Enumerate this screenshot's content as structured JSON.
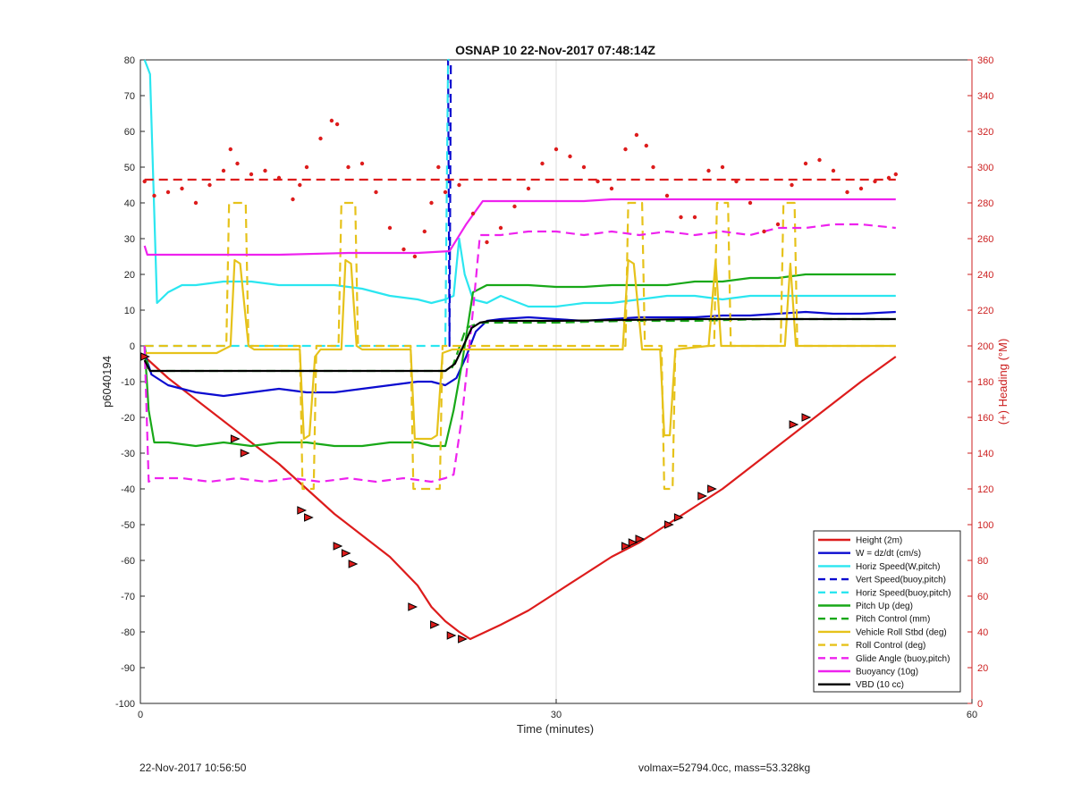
{
  "figure": {
    "footer_left": "22-Nov-2017 10:56:50",
    "footer_right": "volmax=52794.0cc, mass=53.328kg"
  },
  "chart_data": {
    "type": "line",
    "title": "OSNAP 10 22-Nov-2017 07:48:14Z",
    "xlabel": "Time (minutes)",
    "ylabel": "p6040194",
    "y2label": "(+) Heading (°M)",
    "xlim": [
      0,
      60
    ],
    "ylim": [
      -100,
      80
    ],
    "y2lim": [
      0,
      360
    ],
    "xticks": [
      0,
      30,
      60
    ],
    "yticks": [
      -100,
      -90,
      -80,
      -70,
      -60,
      -50,
      -40,
      -30,
      -20,
      -10,
      0,
      10,
      20,
      30,
      40,
      50,
      60,
      70,
      80
    ],
    "y2ticks": [
      0,
      20,
      40,
      60,
      80,
      100,
      120,
      140,
      160,
      180,
      200,
      220,
      240,
      260,
      280,
      300,
      320,
      340,
      360
    ],
    "grid": true,
    "legend_position": "bottom-right",
    "colors": {
      "red": "#dd1c1c",
      "blue": "#0b0bd0",
      "cyan": "#2be6f0",
      "green": "#18a818",
      "yellow": "#e6c21a",
      "magenta": "#ee22ee",
      "black": "#000000",
      "right_axis": "#cc1f1f"
    },
    "series": [
      {
        "name": "Height (2m)",
        "color": "red",
        "dash": false,
        "x": [
          0.3,
          2,
          4,
          6,
          8,
          10,
          12,
          14,
          16,
          18,
          20,
          21,
          22,
          23,
          23.8,
          26,
          28,
          30,
          32,
          34,
          36,
          38,
          40,
          42,
          44,
          46,
          48,
          50,
          52,
          54.5
        ],
        "y": [
          -3,
          -9,
          -15,
          -21,
          -27,
          -33,
          -40,
          -47,
          -53,
          -59,
          -67,
          -73,
          -77,
          -80,
          -82,
          -78,
          -74,
          -69,
          -64,
          -59,
          -55,
          -50,
          -45,
          -40,
          -34,
          -28,
          -22,
          -16,
          -10,
          -3
        ]
      },
      {
        "name": "W = dz/dt (cm/s)",
        "color": "blue",
        "dash": false,
        "x": [
          0.3,
          0.8,
          2,
          4,
          6,
          8,
          10,
          12,
          14,
          16,
          18,
          20,
          21,
          22,
          22.8,
          23.5,
          24.2,
          25,
          26,
          28,
          30,
          32,
          34,
          36,
          38,
          40,
          42,
          44,
          46,
          48,
          50,
          52,
          54.5
        ],
        "y": [
          -2,
          -8,
          -11,
          -13,
          -14,
          -13,
          -12,
          -13,
          -13,
          -12,
          -11,
          -10,
          -10,
          -11,
          -9,
          -3,
          4,
          7,
          7.5,
          8,
          7.5,
          7,
          7.5,
          8,
          8,
          8,
          8.5,
          8.5,
          9,
          9.5,
          9,
          9,
          9.5
        ]
      },
      {
        "name": "Horiz Speed(W,pitch)",
        "color": "cyan",
        "dash": false,
        "x": [
          0.3,
          0.5,
          0.7,
          1.2,
          2,
          3,
          4,
          6,
          8,
          10,
          12,
          14,
          16,
          18,
          20,
          21,
          22,
          22.6,
          23,
          23.4,
          24,
          25,
          26,
          28,
          30,
          32,
          34,
          36,
          38,
          40,
          42,
          44,
          46,
          48,
          50,
          52,
          54.5
        ],
        "y": [
          80,
          78,
          76,
          12,
          15,
          17,
          17,
          18,
          18,
          17,
          17,
          17,
          16,
          14,
          13,
          12,
          13,
          14,
          30,
          20,
          13,
          12,
          14,
          11,
          11,
          12,
          12,
          13,
          14,
          14,
          13,
          14,
          14,
          14,
          14,
          14,
          14
        ]
      },
      {
        "name": "Vert Speed(buoy,pitch)",
        "color": "blue",
        "dash": true,
        "x": [
          22.2,
          22.3,
          22.4
        ],
        "y": [
          80,
          0,
          80
        ]
      },
      {
        "name": "Horiz Speed(buoy,pitch)",
        "color": "cyan",
        "dash": true,
        "x": [
          0.3,
          8,
          14,
          22,
          22.2,
          22.3
        ],
        "y": [
          0,
          0,
          0,
          0,
          80,
          80
        ]
      },
      {
        "name": "Pitch Up (deg)",
        "color": "green",
        "dash": false,
        "x": [
          0.3,
          0.6,
          1,
          2,
          4,
          6,
          8,
          10,
          12,
          14,
          16,
          18,
          20,
          21,
          22,
          22.6,
          23.2,
          24,
          25,
          26,
          28,
          30,
          32,
          34,
          36,
          38,
          40,
          42,
          44,
          46,
          48,
          50,
          52,
          54.5
        ],
        "y": [
          0,
          -18,
          -27,
          -27,
          -28,
          -27,
          -28,
          -27,
          -27,
          -28,
          -28,
          -27,
          -27,
          -28,
          -28,
          -18,
          -5,
          15,
          17,
          17,
          17,
          16.5,
          16.5,
          17,
          17,
          17,
          18,
          18,
          19,
          19,
          20,
          20,
          20,
          20
        ]
      },
      {
        "name": "Pitch Control (mm)",
        "color": "green",
        "dash": true,
        "x": [
          0.3,
          0.6,
          5,
          10,
          15,
          20,
          22,
          22.5,
          23.5,
          24.5,
          30,
          35,
          40,
          45,
          50,
          54.5
        ],
        "y": [
          0,
          -7,
          -7,
          -7,
          -7,
          -7,
          -7,
          -6,
          5,
          6.5,
          6.5,
          7,
          7,
          7.5,
          7.5,
          7.5
        ]
      },
      {
        "name": "Vehicle Roll Stbd (deg)",
        "color": "yellow",
        "dash": false,
        "x": [
          0.3,
          5.5,
          6.5,
          6.8,
          7.2,
          7.8,
          8.2,
          11.5,
          11.8,
          12.2,
          12.6,
          13,
          14.5,
          14.8,
          15.2,
          15.6,
          16,
          19.5,
          19.8,
          21,
          21.4,
          21.8,
          22.5,
          23.5,
          24,
          25,
          34.8,
          35.2,
          35.6,
          36.2,
          36.6,
          37.5,
          37.8,
          38.2,
          38.6,
          41,
          41.5,
          41.9,
          46.5,
          46.9,
          47.3,
          54.5
        ],
        "y": [
          -2,
          -2,
          0,
          24,
          23,
          0,
          -1,
          -1,
          -26,
          -25,
          -3,
          -1,
          -1,
          24,
          23,
          0,
          -1,
          -1,
          -26,
          -26,
          -25,
          -2,
          -1,
          -1,
          -1,
          -1,
          -1,
          24,
          23,
          -1,
          -1,
          -1,
          -25,
          -25,
          -1,
          0,
          24,
          0,
          0,
          23,
          0,
          0
        ]
      },
      {
        "name": "Roll Control (deg)",
        "color": "yellow",
        "dash": true,
        "x": [
          0.3,
          6.2,
          6.4,
          7.6,
          7.8,
          11.5,
          11.7,
          12.5,
          12.7,
          14.3,
          14.5,
          15.5,
          15.7,
          19.5,
          19.7,
          21.6,
          21.8,
          22.5,
          23.6,
          35,
          35.2,
          36.2,
          36.4,
          37.6,
          37.8,
          38.4,
          38.6,
          41.4,
          41.6,
          42.4,
          42.6,
          46.2,
          46.4,
          47.2,
          47.4,
          54.5
        ],
        "y": [
          0,
          0,
          40,
          40,
          0,
          0,
          -40,
          -40,
          0,
          0,
          40,
          40,
          0,
          0,
          -40,
          -40,
          0,
          0,
          0,
          0,
          40,
          40,
          0,
          0,
          -40,
          -40,
          0,
          0,
          40,
          40,
          0,
          0,
          40,
          40,
          0,
          0
        ]
      },
      {
        "name": "Glide Angle (buoy,pitch)",
        "color": "magenta",
        "dash": true,
        "x": [
          0.3,
          0.6,
          1,
          3,
          5,
          7,
          9,
          11,
          13,
          15,
          17,
          19,
          21,
          22,
          22.6,
          23.2,
          24,
          24.5,
          26,
          28,
          30,
          32,
          34,
          36,
          38,
          40,
          42,
          44,
          46,
          48,
          50,
          52,
          54.5
        ],
        "y": [
          0,
          -38,
          -37,
          -37,
          -38,
          -37,
          -38,
          -37,
          -38,
          -37,
          -38,
          -37,
          -38,
          -37,
          -36,
          -20,
          10,
          31,
          31,
          32,
          32,
          31,
          32,
          31,
          32,
          31,
          32,
          31,
          33,
          33,
          34,
          34,
          33
        ]
      },
      {
        "name": "Buoyancy (10g)",
        "color": "magenta",
        "dash": false,
        "x": [
          0.3,
          0.5,
          5,
          10,
          15,
          20,
          22.3,
          23.5,
          24.7,
          26,
          28,
          30,
          32,
          34,
          36,
          38,
          40,
          42,
          44,
          46,
          48,
          50,
          52,
          54.5
        ],
        "y": [
          28,
          25.5,
          25.5,
          25.5,
          26,
          26,
          26.5,
          34,
          40.5,
          40.5,
          40.5,
          40.5,
          40.5,
          41,
          41,
          41,
          41,
          41,
          41,
          41,
          41,
          41,
          41,
          41
        ]
      },
      {
        "name": "VBD (10 cc)",
        "color": "black",
        "dash": false,
        "x": [
          0.3,
          0.7,
          2,
          10,
          20,
          22,
          22.7,
          23.3,
          23.9,
          24.5,
          25.2,
          26,
          30,
          40,
          50,
          54.5
        ],
        "y": [
          -4,
          -7,
          -7,
          -7,
          -7,
          -7,
          -5,
          0,
          5,
          6.5,
          7,
          7,
          7,
          7.5,
          7.5,
          7.5
        ]
      },
      {
        "name": "Heading (right axis)",
        "color": "red",
        "dotted": true,
        "axis": "right",
        "x": [
          0.3,
          1,
          2,
          3,
          4,
          5,
          6,
          6.5,
          7,
          8,
          9,
          10,
          11,
          11.5,
          12,
          13,
          13.8,
          14.2,
          15,
          16,
          17,
          18,
          19,
          19.8,
          20.5,
          21,
          21.5,
          22,
          23,
          24,
          25,
          26,
          27,
          28,
          29,
          30,
          31,
          32,
          33,
          34,
          35,
          35.8,
          36.5,
          37,
          38,
          39,
          40,
          41,
          42,
          43,
          44,
          45,
          46,
          47,
          48,
          49,
          50,
          51,
          52,
          53,
          54,
          54.5
        ],
        "y": [
          292,
          284,
          286,
          288,
          280,
          290,
          298,
          310,
          302,
          296,
          298,
          294,
          282,
          290,
          300,
          316,
          326,
          324,
          300,
          302,
          286,
          266,
          254,
          250,
          264,
          280,
          300,
          286,
          290,
          274,
          258,
          266,
          278,
          288,
          302,
          310,
          306,
          300,
          292,
          288,
          310,
          318,
          312,
          300,
          284,
          272,
          272,
          298,
          300,
          292,
          280,
          264,
          268,
          290,
          302,
          304,
          298,
          286,
          288,
          292,
          294,
          296
        ]
      },
      {
        "name": "Heading reference",
        "color": "red",
        "dash": true,
        "axis": "right",
        "x": [
          0.3,
          54.5
        ],
        "y": [
          293,
          293
        ]
      }
    ],
    "markers": {
      "color": "red",
      "points": [
        {
          "x": 0.3,
          "y": -3
        },
        {
          "x": 6.8,
          "y": -26
        },
        {
          "x": 7.5,
          "y": -30
        },
        {
          "x": 11.6,
          "y": -46
        },
        {
          "x": 12.1,
          "y": -48
        },
        {
          "x": 14.2,
          "y": -56
        },
        {
          "x": 14.8,
          "y": -58
        },
        {
          "x": 15.3,
          "y": -61
        },
        {
          "x": 19.6,
          "y": -73
        },
        {
          "x": 21.2,
          "y": -78
        },
        {
          "x": 22.4,
          "y": -81
        },
        {
          "x": 23.2,
          "y": -82
        },
        {
          "x": 35.0,
          "y": -56
        },
        {
          "x": 35.5,
          "y": -55
        },
        {
          "x": 36.0,
          "y": -54
        },
        {
          "x": 38.1,
          "y": -50
        },
        {
          "x": 38.8,
          "y": -48
        },
        {
          "x": 40.5,
          "y": -42
        },
        {
          "x": 41.2,
          "y": -40
        },
        {
          "x": 47.1,
          "y": -22
        },
        {
          "x": 48.0,
          "y": -20
        }
      ]
    },
    "legend": [
      "Height (2m)",
      "W = dz/dt (cm/s)",
      "Horiz Speed(W,pitch)",
      "Vert Speed(buoy,pitch)",
      "Horiz Speed(buoy,pitch)",
      "Pitch Up (deg)",
      "Pitch Control (mm)",
      "Vehicle Roll Stbd (deg)",
      "Roll Control (deg)",
      "Glide Angle (buoy,pitch)",
      "Buoyancy (10g)",
      "VBD (10 cc)"
    ]
  }
}
